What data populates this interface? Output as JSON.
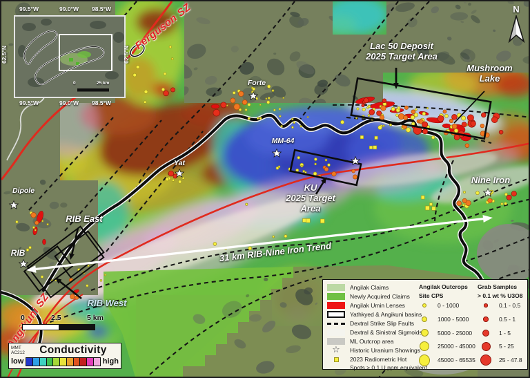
{
  "map": {
    "annotations": {
      "ferguson_sz": "Ferguson SZ",
      "angikuni_sz": "Angikuni SZ",
      "lac50_line1": "Lac 50 Deposit",
      "lac50_line2": "2025 Target Area",
      "mushroom_line1": "Mushroom",
      "mushroom_line2": "Lake",
      "ku_line1": "KU",
      "ku_line2": "2025 Target",
      "ku_line3": "Area",
      "trend": "31 km RIB-Nine Iron Trend",
      "forte": "Forte",
      "mm64": "MM-64",
      "yat": "Yat",
      "nine_iron": "Nine Iron",
      "dipole": "Dipole",
      "rib": "RIB",
      "rib_east": "RIB East",
      "rib_west": "RIB West"
    },
    "north_label": "N"
  },
  "inset": {
    "lon_labels": [
      "99.5°W",
      "99.0°W",
      "98.5°W"
    ],
    "lat_label": "62.5°N",
    "scale_start": "0",
    "scale_end": "25 km"
  },
  "scalebar": {
    "start": "0",
    "mid": "2.5",
    "end": "5 km"
  },
  "conductivity": {
    "sensor1": "MMT",
    "sensor2": "AC212",
    "title": "Conductivity",
    "low": "low",
    "high": "high",
    "ramp": [
      "#2237cc",
      "#2ea0e6",
      "#3fd1c0",
      "#3fbf4f",
      "#a6d838",
      "#e8e23a",
      "#e89f2c",
      "#e0531f",
      "#c31f1f",
      "#e33fb9",
      "#f0a8dc"
    ]
  },
  "legend": {
    "items": [
      {
        "label": "Angilak Claims",
        "kind": "fill",
        "color": "#bcd9a4"
      },
      {
        "label": "Newly Acquired Claims",
        "kind": "fill",
        "color": "#70c043"
      },
      {
        "label": "Angilak Umin Lenses",
        "kind": "fill",
        "color": "#ee1414"
      },
      {
        "label": "Yathkyed & Angikuni basins",
        "kind": "outline",
        "color": "#ffffff"
      },
      {
        "label": "Dextral Strike Slip Faults",
        "kind": "dash",
        "color": "#111111"
      },
      {
        "label": "Dextral & Sinistral Sigmoids",
        "kind": "fill",
        "color": "#f4f4ee"
      },
      {
        "label": "ML Outcrop area",
        "kind": "fill",
        "color": "#c9c9c4"
      },
      {
        "label": "Historic Uranium Showings",
        "kind": "star",
        "color": "#ffffff"
      },
      {
        "label": "2023 Radiometric Hot",
        "label2": "Spots > 0.1 U ppm equivalent",
        "kind": "square",
        "color": "#f6ef3d"
      }
    ],
    "outcrops": {
      "header1": "Angilak Outcrops",
      "header2": "Site CPS",
      "dot_color": "#f6ef3d",
      "rows": [
        "0 - 1000",
        "1000 - 5000",
        "5000 - 25000",
        "25000 - 45000",
        "45000 - 65535"
      ]
    },
    "grabs": {
      "header1": "Grab Samples",
      "header2": "> 0.1 wt % U3O8",
      "dot_color": "#e6392b",
      "rows": [
        "0.1 - 0.5",
        "0.5 - 1",
        "1 - 5",
        "5 - 25",
        "25 - 47.8"
      ]
    }
  }
}
